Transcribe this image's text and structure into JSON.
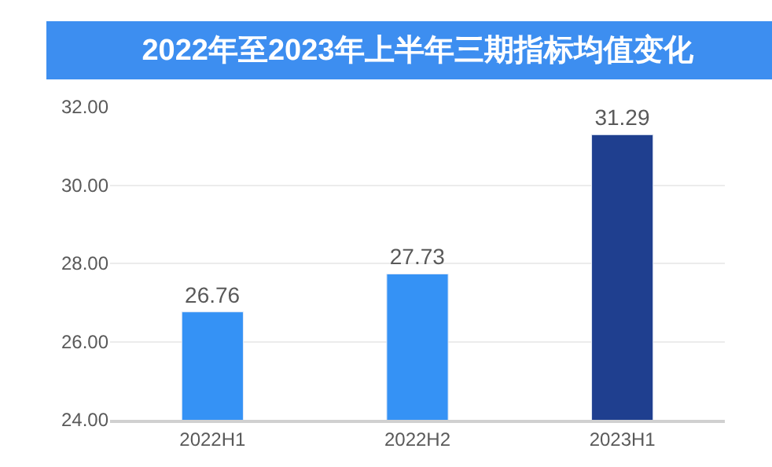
{
  "chart_data": {
    "type": "bar",
    "title": "2022年至2023年上半年三期指标均值变化",
    "categories": [
      "2022H1",
      "2022H2",
      "2023H1"
    ],
    "values": [
      26.76,
      27.73,
      31.29
    ],
    "colors": [
      "#3592f5",
      "#3592f5",
      "#1f3f8f"
    ],
    "data_labels": true,
    "ylim": [
      24,
      32
    ],
    "yticks": [
      {
        "value": 24,
        "label": "24.00"
      },
      {
        "value": 26,
        "label": "26.00"
      },
      {
        "value": 28,
        "label": "28.00"
      },
      {
        "value": 30,
        "label": "30.00"
      },
      {
        "value": 32,
        "label": "32.00"
      }
    ],
    "grid": "y"
  }
}
